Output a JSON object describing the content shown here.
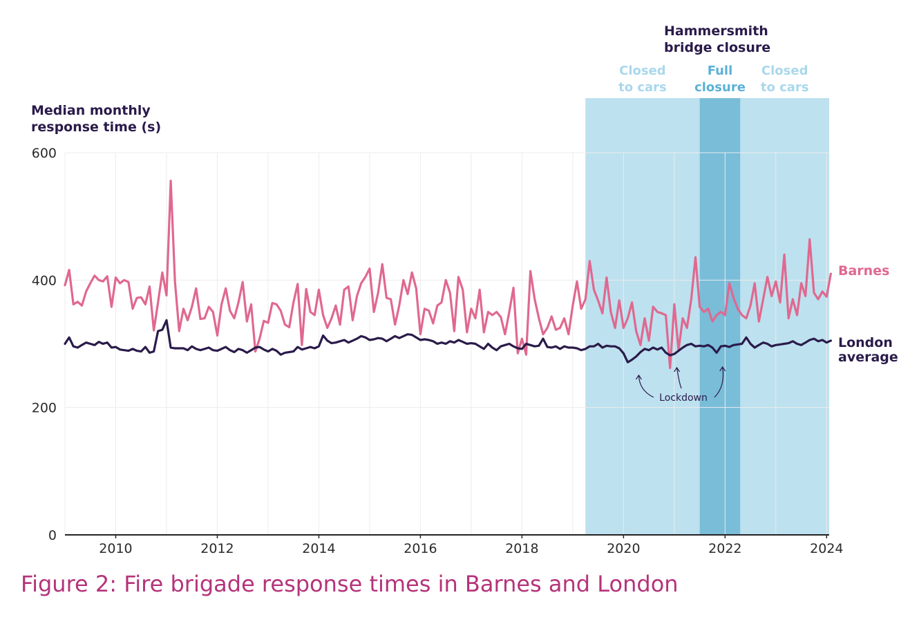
{
  "caption": "Figure 2: Fire brigade response times in Barnes and London",
  "chart_data": {
    "type": "line",
    "ylabel_lines": [
      "Median monthly",
      "response time (s)"
    ],
    "xlim": [
      2009,
      2024.05
    ],
    "ylim": [
      0,
      600
    ],
    "yticks": [
      0,
      200,
      400,
      600
    ],
    "xticks": [
      2010,
      2012,
      2014,
      2016,
      2018,
      2020,
      2022,
      2024
    ],
    "grid": true,
    "colors": {
      "barnes": "#e0688f",
      "london": "#2a1b4a",
      "band_light": "#bde1ef",
      "band_dark": "#79bdd8",
      "band_label_light": "#a9d8ec",
      "band_label_dark": "#5bb1d6"
    },
    "annotation_title_lines": [
      "Hammersmith",
      "bridge closure"
    ],
    "bands": [
      {
        "label_lines": [
          "Closed",
          "to cars"
        ],
        "x0": 2019.25,
        "x1": 2021.5,
        "tone": "light"
      },
      {
        "label_lines": [
          "Full",
          "closure"
        ],
        "x0": 2021.5,
        "x1": 2022.3,
        "tone": "dark"
      },
      {
        "label_lines": [
          "Closed",
          "to cars"
        ],
        "x0": 2022.3,
        "x1": 2024.05,
        "tone": "light"
      }
    ],
    "lockdown_label": "Lockdown",
    "lockdown_dates": [
      2020.3,
      2021.05,
      2021.95
    ],
    "series": [
      {
        "name": "Barnes",
        "label_lines": [
          "Barnes"
        ],
        "start_year": 2009,
        "step_months": 1,
        "values": [
          392,
          416,
          362,
          366,
          360,
          382,
          395,
          407,
          400,
          398,
          406,
          358,
          404,
          395,
          400,
          397,
          355,
          372,
          373,
          362,
          390,
          321,
          365,
          412,
          376,
          556,
          398,
          320,
          355,
          337,
          358,
          387,
          339,
          340,
          358,
          350,
          313,
          362,
          387,
          352,
          340,
          365,
          397,
          335,
          362,
          288,
          308,
          336,
          333,
          364,
          362,
          352,
          330,
          326,
          365,
          394,
          298,
          386,
          350,
          345,
          385,
          345,
          325,
          340,
          360,
          330,
          385,
          390,
          337,
          375,
          395,
          405,
          418,
          350,
          380,
          425,
          372,
          370,
          330,
          360,
          400,
          378,
          412,
          387,
          315,
          355,
          352,
          332,
          360,
          365,
          400,
          380,
          320,
          405,
          385,
          318,
          355,
          340,
          385,
          318,
          350,
          345,
          350,
          342,
          315,
          350,
          388,
          285,
          308,
          283,
          414,
          370,
          340,
          315,
          325,
          343,
          322,
          325,
          340,
          315,
          360,
          398,
          355,
          370,
          430,
          385,
          368,
          348,
          404,
          350,
          325,
          368,
          325,
          340,
          365,
          320,
          298,
          340,
          305,
          358,
          350,
          348,
          345,
          262,
          362,
          290,
          340,
          325,
          370,
          436,
          358,
          350,
          355,
          335,
          345,
          350,
          345,
          395,
          372,
          355,
          345,
          340,
          360,
          395,
          335,
          370,
          405,
          375,
          398,
          365,
          440,
          340,
          370,
          345,
          395,
          375,
          464,
          380,
          370,
          382,
          374,
          410
        ],
        "label_y": 410
      },
      {
        "name": "London average",
        "label_lines": [
          "London",
          "average"
        ],
        "start_year": 2009,
        "step_months": 1,
        "values": [
          300,
          310,
          296,
          294,
          298,
          302,
          300,
          298,
          303,
          300,
          302,
          294,
          295,
          291,
          290,
          289,
          292,
          289,
          288,
          295,
          286,
          288,
          320,
          322,
          337,
          294,
          293,
          293,
          293,
          290,
          296,
          292,
          290,
          292,
          294,
          290,
          289,
          292,
          295,
          290,
          287,
          292,
          290,
          286,
          290,
          294,
          295,
          291,
          288,
          292,
          289,
          283,
          286,
          287,
          288,
          295,
          291,
          293,
          295,
          293,
          296,
          313,
          305,
          301,
          302,
          304,
          306,
          302,
          305,
          308,
          312,
          310,
          306,
          307,
          309,
          308,
          304,
          308,
          312,
          309,
          312,
          315,
          314,
          310,
          306,
          307,
          306,
          304,
          300,
          302,
          300,
          304,
          302,
          306,
          303,
          300,
          301,
          300,
          296,
          292,
          300,
          294,
          290,
          296,
          298,
          300,
          296,
          293,
          292,
          300,
          298,
          296,
          297,
          308,
          295,
          294,
          296,
          292,
          296,
          294,
          294,
          293,
          290,
          292,
          296,
          296,
          300,
          294,
          297,
          296,
          296,
          293,
          285,
          271,
          275,
          280,
          287,
          292,
          290,
          294,
          291,
          294,
          286,
          282,
          284,
          289,
          294,
          298,
          300,
          296,
          297,
          296,
          298,
          294,
          286,
          296,
          297,
          295,
          298,
          299,
          300,
          310,
          300,
          294,
          298,
          302,
          300,
          296,
          298,
          299,
          300,
          301,
          304,
          300,
          298,
          302,
          306,
          308,
          304,
          306,
          302,
          305
        ]
      }
    ]
  }
}
